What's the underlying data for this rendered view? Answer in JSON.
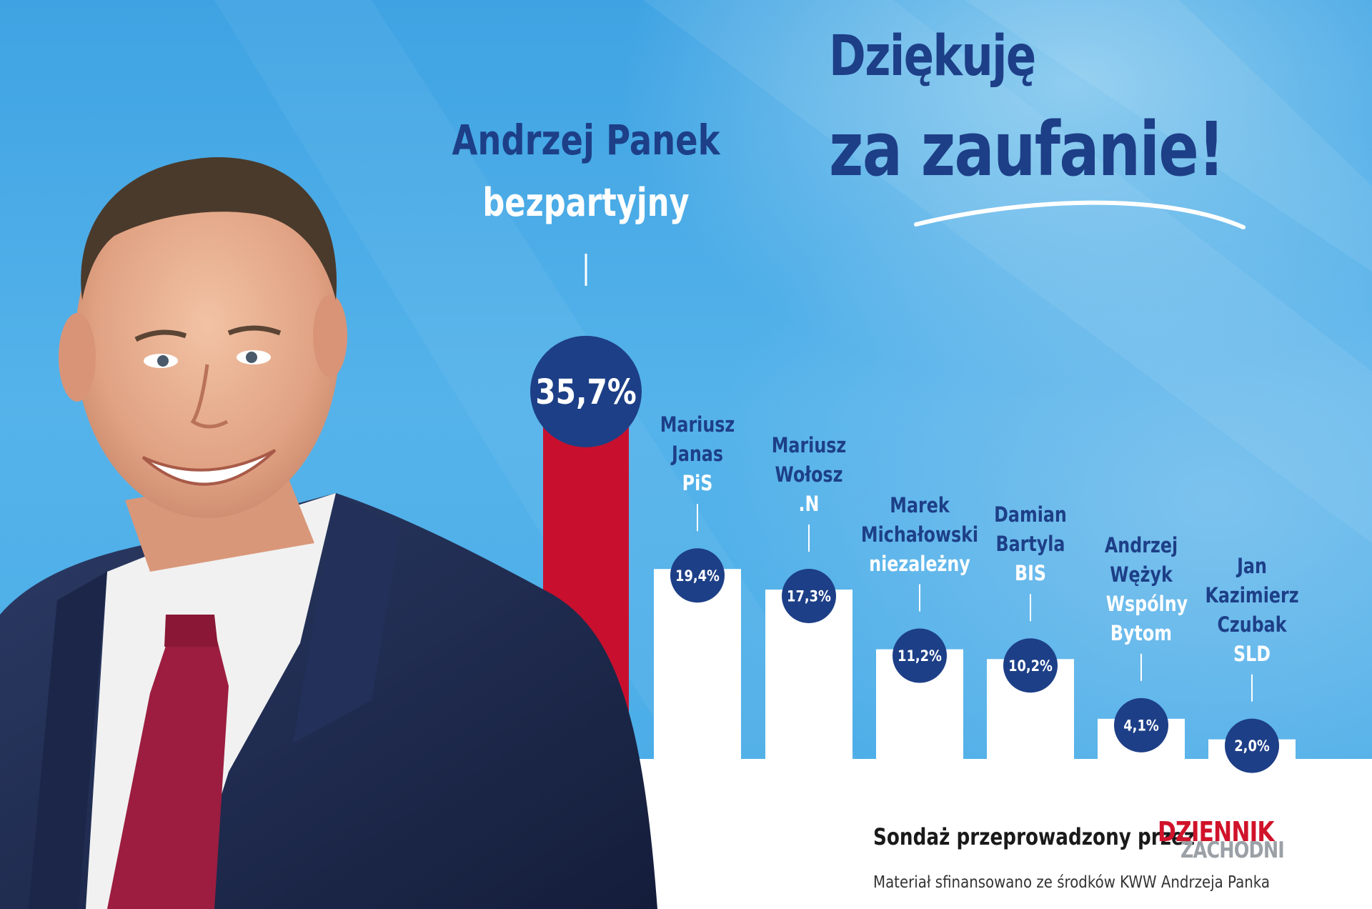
{
  "headline": {
    "line1": "Dziękuję",
    "line2": "za zaufanie!"
  },
  "leader": {
    "name": "Andrzej Panek",
    "party": "bezpartyjny"
  },
  "footer": {
    "sondaz": "Sondaż przeprowadzony przez",
    "logo_top": "DZIENNIK",
    "logo_bottom": "ZACHODNI",
    "financed": "Materiał sfinansowano ze środków KWW Andrzeja Panka"
  },
  "colors": {
    "navy": "#1d3f87",
    "red": "#c8102e",
    "bar_white": "#ffffff",
    "sky": "#4aabe6"
  },
  "chart_data": {
    "type": "bar",
    "value_suffix": "%",
    "candidates": [
      {
        "name_lines": [
          "Andrzej Panek"
        ],
        "party": "bezpartyjny",
        "value": 35.7,
        "label": "35,7%",
        "highlight": true
      },
      {
        "name_lines": [
          "Mariusz",
          "Janas"
        ],
        "party": "PiS",
        "value": 19.4,
        "label": "19,4%"
      },
      {
        "name_lines": [
          "Mariusz",
          "Wołosz"
        ],
        "party": ".N",
        "value": 17.3,
        "label": "17,3%"
      },
      {
        "name_lines": [
          "Marek",
          "Michałowski"
        ],
        "party": "niezależny",
        "value": 11.2,
        "label": "11,2%"
      },
      {
        "name_lines": [
          "Damian",
          "Bartyla"
        ],
        "party": "BIS",
        "value": 10.2,
        "label": "10,2%"
      },
      {
        "name_lines": [
          "Andrzej",
          "Wężyk"
        ],
        "party": "Wspólny Bytom",
        "value": 4.1,
        "label": "4,1%"
      },
      {
        "name_lines": [
          "Jan",
          "Kazimierz",
          "Czubak"
        ],
        "party": "SLD",
        "value": 2.0,
        "label": "2,0%"
      }
    ]
  }
}
